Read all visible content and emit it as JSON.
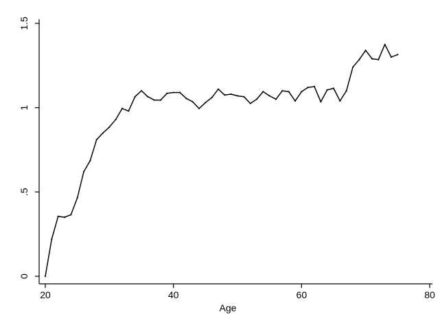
{
  "chart_data": {
    "type": "line",
    "title": "",
    "xlabel": "Age",
    "ylabel": "",
    "xlim": [
      20,
      80
    ],
    "ylim": [
      0,
      1.5
    ],
    "x_ticks": [
      20,
      40,
      60,
      80
    ],
    "x_tick_labels": [
      "20",
      "40",
      "60",
      "80"
    ],
    "y_ticks": [
      0,
      0.5,
      1,
      1.5
    ],
    "y_tick_labels": [
      "0",
      ".5",
      "1",
      "1.5"
    ],
    "grid": false,
    "legend": "none",
    "colors": {
      "line": "#000000",
      "axis": "#000000",
      "background": "#ffffff"
    },
    "series": [
      {
        "x": [
          20,
          21,
          22,
          23,
          24,
          25,
          26,
          27,
          28,
          29,
          30,
          31,
          32,
          33,
          34,
          35,
          36,
          37,
          38,
          39,
          40,
          41,
          42,
          43,
          44,
          45,
          46,
          47,
          48,
          49,
          50,
          51,
          52,
          53,
          54,
          55,
          56,
          57,
          58,
          59,
          60,
          61,
          62,
          63,
          64,
          65,
          66,
          67,
          68,
          69,
          70,
          71,
          72,
          73,
          74,
          75
        ],
        "values": [
          0.0,
          0.22,
          0.355,
          0.35,
          0.365,
          0.465,
          0.62,
          0.685,
          0.81,
          0.85,
          0.885,
          0.93,
          0.995,
          0.98,
          1.065,
          1.1,
          1.065,
          1.045,
          1.045,
          1.085,
          1.09,
          1.09,
          1.055,
          1.035,
          0.995,
          1.03,
          1.06,
          1.11,
          1.075,
          1.08,
          1.07,
          1.065,
          1.025,
          1.05,
          1.095,
          1.07,
          1.05,
          1.1,
          1.095,
          1.04,
          1.095,
          1.12,
          1.125,
          1.035,
          1.105,
          1.115,
          1.04,
          1.1,
          1.24,
          1.285,
          1.34,
          1.29,
          1.285,
          1.375,
          1.3,
          1.315
        ]
      }
    ]
  }
}
